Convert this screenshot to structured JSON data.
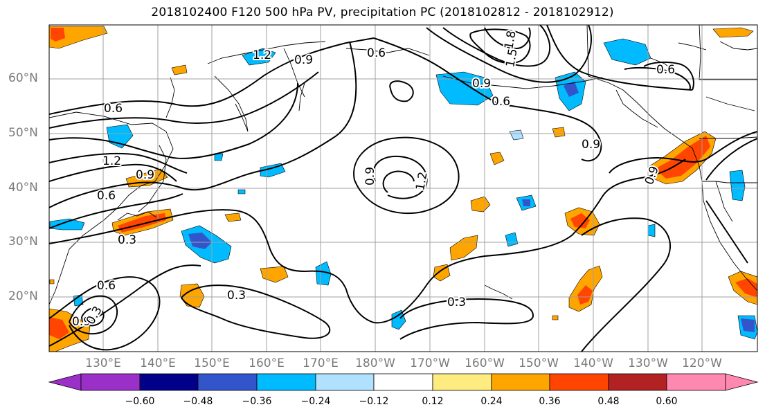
{
  "title": "2018102400 F120 500 hPa PV, precipitation PC (2018102812 - 2018102912)",
  "latitude_labels": [
    "60°N",
    "50°N",
    "40°N",
    "30°N",
    "20°N"
  ],
  "longitude_labels": [
    "130°E",
    "140°E",
    "150°E",
    "160°E",
    "170°E",
    "180°W",
    "170°W",
    "160°W",
    "150°W",
    "140°W",
    "130°W",
    "120°W"
  ],
  "contour_labels": [
    "1.2",
    "0.9",
    "0.6",
    "1.8",
    "1.5",
    "0.6",
    "0.9",
    "0.6",
    "0.6",
    "0.9",
    "1.2",
    "0.9",
    "1.2",
    "0.9",
    "0.9",
    "0.6",
    "0.3",
    "0.6",
    "0.9",
    "0.3",
    "0.3",
    "0.3"
  ],
  "colorbar": {
    "ticks": [
      "−0.60",
      "−0.48",
      "−0.36",
      "−0.24",
      "−0.12",
      "0.12",
      "0.24",
      "0.36",
      "0.48",
      "0.60"
    ],
    "colors": [
      "#9b30c8",
      "#000088",
      "#3355cc",
      "#00bbff",
      "#b0e2ff",
      "#ffffff",
      "#ffec80",
      "#ffa500",
      "#ff4500",
      "#b22222",
      "#ff88b0"
    ]
  },
  "colors": {
    "pos_light": "#ffec80",
    "pos_mid": "#ffa500",
    "pos_strong": "#ff4500",
    "neg_light": "#b0e2ff",
    "neg_mid": "#00bbff",
    "neg_strong": "#3355cc"
  }
}
